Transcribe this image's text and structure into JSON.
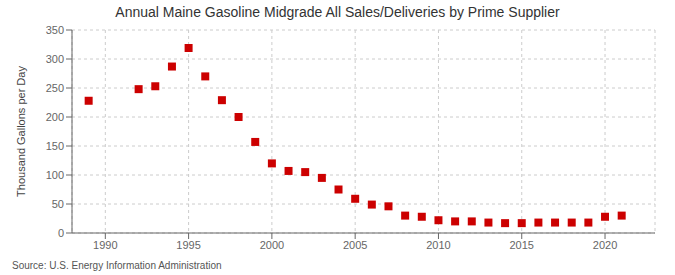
{
  "chart_data": {
    "type": "scatter",
    "title": "Annual Maine Gasoline Midgrade All Sales/Deliveries by Prime Supplier",
    "ylabel": "Thousand Gallons per Day",
    "annotations": [
      "Source: U.S. Energy Information Administration"
    ],
    "x": [
      1989,
      1992,
      1993,
      1994,
      1995,
      1996,
      1997,
      1998,
      1999,
      2000,
      2001,
      2002,
      2003,
      2004,
      2005,
      2006,
      2007,
      2008,
      2009,
      2010,
      2011,
      2012,
      2013,
      2014,
      2015,
      2016,
      2017,
      2018,
      2019,
      2020,
      2021
    ],
    "values": [
      228,
      248,
      253,
      287,
      319,
      270,
      229,
      200,
      157,
      120,
      107,
      105,
      95,
      75,
      59,
      49,
      46,
      30,
      28,
      22,
      20,
      20,
      18,
      17,
      17,
      18,
      18,
      18,
      18,
      28,
      30
    ],
    "color": "#cc0000",
    "marker": "square",
    "xlim": [
      1988,
      2023
    ],
    "ylim": [
      0,
      350
    ],
    "xticks": [
      1990,
      1995,
      2000,
      2005,
      2010,
      2015,
      2020
    ],
    "yticks": [
      0,
      50,
      100,
      150,
      200,
      250,
      300,
      350
    ],
    "grid": true
  }
}
